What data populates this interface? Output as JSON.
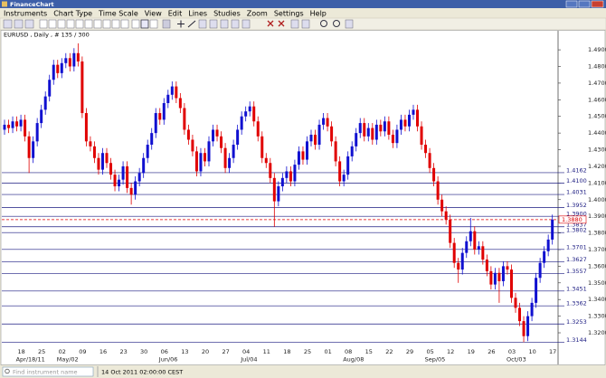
{
  "window": {
    "title": "FinanceChart"
  },
  "menu": [
    "Instruments",
    "Chart Type",
    "Time Scale",
    "View",
    "Edit",
    "Lines",
    "Studies",
    "Zoom",
    "Settings",
    "Help"
  ],
  "status": {
    "search_placeholder": "Find instrument name",
    "datetime": "14 Oct 2011 02:00:00 CEST"
  },
  "chart_data": {
    "type": "candlestick",
    "title": "EURUSD , Daily , # 135 / 300",
    "up_color": "#1010d0",
    "down_color": "#e00000",
    "level_color": "#1a1a80",
    "last_color": "#e00000",
    "ylim": [
      1.3124,
      1.4982
    ],
    "yticks": [
      {
        "value": 1.49,
        "label": "1.4900"
      },
      {
        "value": 1.48,
        "label": "1.4800"
      },
      {
        "value": 1.47,
        "label": "1.4700"
      },
      {
        "value": 1.46,
        "label": "1.4600"
      },
      {
        "value": 1.45,
        "label": "1.4500"
      },
      {
        "value": 1.44,
        "label": "1.4400"
      },
      {
        "value": 1.43,
        "label": "1.4300"
      },
      {
        "value": 1.42,
        "label": "1.4200"
      },
      {
        "value": 1.41,
        "label": "1.4100"
      },
      {
        "value": 1.4,
        "label": "1.4000"
      },
      {
        "value": 1.39,
        "label": "1.3900"
      },
      {
        "value": 1.38,
        "label": "1.3800"
      },
      {
        "value": 1.37,
        "label": "1.3700"
      },
      {
        "value": 1.36,
        "label": "1.3600"
      },
      {
        "value": 1.35,
        "label": "1.3500"
      },
      {
        "value": 1.34,
        "label": "1.3400"
      },
      {
        "value": 1.33,
        "label": "1.3300"
      },
      {
        "value": 1.32,
        "label": "1.3200"
      }
    ],
    "levels": [
      1.4162,
      {
        "value": 1.41,
        "label": "1.4100"
      },
      1.4031,
      1.3952,
      {
        "value": 1.39,
        "label": "1.3900"
      },
      1.3837,
      1.3802,
      1.3701,
      1.3627,
      1.3557,
      1.3451,
      1.3362,
      1.3253,
      1.3144
    ],
    "last_price": {
      "value": 1.388,
      "label": "1.3880"
    },
    "categories": [
      null,
      null,
      null,
      null,
      null,
      "18",
      null,
      null,
      null,
      null,
      "25",
      null,
      null,
      null,
      null,
      "02",
      null,
      null,
      null,
      null,
      "09",
      null,
      null,
      null,
      null,
      "16",
      null,
      null,
      null,
      null,
      "23",
      null,
      null,
      null,
      null,
      "30",
      null,
      null,
      null,
      null,
      "06",
      null,
      null,
      null,
      null,
      "13",
      null,
      null,
      null,
      null,
      "20",
      null,
      null,
      null,
      null,
      "27",
      null,
      null,
      null,
      null,
      "04",
      null,
      null,
      null,
      null,
      "11",
      null,
      null,
      null,
      null,
      "18",
      null,
      null,
      null,
      null,
      "25",
      null,
      null,
      null,
      null,
      "01",
      null,
      null,
      null,
      null,
      "08",
      null,
      null,
      null,
      null,
      "15",
      null,
      null,
      null,
      null,
      "22",
      null,
      null,
      null,
      null,
      "29",
      null,
      null,
      null,
      null,
      "05",
      null,
      null,
      null,
      null,
      "12",
      null,
      null,
      null,
      null,
      "19",
      null,
      null,
      null,
      null,
      "26",
      null,
      null,
      null,
      null,
      "03",
      null,
      null,
      null,
      null,
      "10",
      null,
      null,
      null,
      null,
      "17"
    ],
    "month_categories": [
      null,
      null,
      null,
      null,
      null,
      "Apr/18/11",
      null,
      null,
      null,
      null,
      null,
      null,
      null,
      null,
      null,
      "May/02",
      null,
      null,
      null,
      null,
      null,
      null,
      null,
      null,
      null,
      null,
      null,
      null,
      null,
      null,
      null,
      null,
      null,
      null,
      null,
      null,
      null,
      null,
      null,
      null,
      "Jun/06",
      null,
      null,
      null,
      null,
      null,
      null,
      null,
      null,
      null,
      null,
      null,
      null,
      null,
      null,
      null,
      null,
      null,
      null,
      null,
      "Jul/04",
      null,
      null,
      null,
      null,
      null,
      null,
      null,
      null,
      null,
      null,
      null,
      null,
      null,
      null,
      null,
      null,
      null,
      null,
      null,
      null,
      null,
      null,
      null,
      null,
      "Aug/08",
      null,
      null,
      null,
      null,
      null,
      null,
      null,
      null,
      null,
      null,
      null,
      null,
      null,
      null,
      null,
      null,
      null,
      null,
      null,
      "Sep/05",
      null,
      null,
      null,
      null,
      null,
      null,
      null,
      null,
      null,
      null,
      null,
      null,
      null,
      null,
      null,
      null,
      null,
      null,
      null,
      "Oct/03",
      null,
      null,
      null,
      null,
      null,
      null,
      null,
      null,
      null,
      null
    ],
    "ohlc": [
      [
        1.442,
        1.448,
        1.439,
        1.445
      ],
      [
        1.445,
        1.448,
        1.44,
        1.443
      ],
      [
        1.443,
        1.45,
        1.44,
        1.447
      ],
      [
        1.447,
        1.45,
        1.441,
        1.444
      ],
      [
        1.444,
        1.451,
        1.441,
        1.448
      ],
      [
        1.448,
        1.451,
        1.435,
        1.438
      ],
      [
        1.438,
        1.441,
        1.416,
        1.425
      ],
      [
        1.425,
        1.438,
        1.422,
        1.435
      ],
      [
        1.435,
        1.449,
        1.432,
        1.446
      ],
      [
        1.446,
        1.457,
        1.443,
        1.454
      ],
      [
        1.454,
        1.465,
        1.451,
        1.462
      ],
      [
        1.462,
        1.475,
        1.459,
        1.472
      ],
      [
        1.472,
        1.484,
        1.469,
        1.481
      ],
      [
        1.481,
        1.484,
        1.473,
        1.476
      ],
      [
        1.476,
        1.485,
        1.473,
        1.482
      ],
      [
        1.482,
        1.488,
        1.479,
        1.485
      ],
      [
        1.485,
        1.488,
        1.477,
        1.48
      ],
      [
        1.48,
        1.491,
        1.477,
        1.488
      ],
      [
        1.488,
        1.4939,
        1.48,
        1.483
      ],
      [
        1.483,
        1.486,
        1.449,
        1.452
      ],
      [
        1.452,
        1.455,
        1.432,
        1.435
      ],
      [
        1.435,
        1.438,
        1.429,
        1.432
      ],
      [
        1.432,
        1.435,
        1.422,
        1.425
      ],
      [
        1.425,
        1.428,
        1.415,
        1.418
      ],
      [
        1.418,
        1.431,
        1.415,
        1.428
      ],
      [
        1.428,
        1.431,
        1.419,
        1.422
      ],
      [
        1.422,
        1.425,
        1.412,
        1.415
      ],
      [
        1.415,
        1.418,
        1.405,
        1.408
      ],
      [
        1.408,
        1.415,
        1.405,
        1.412
      ],
      [
        1.412,
        1.423,
        1.409,
        1.42
      ],
      [
        1.42,
        1.423,
        1.404,
        1.407
      ],
      [
        1.407,
        1.41,
        1.397,
        1.403
      ],
      [
        1.403,
        1.414,
        1.4,
        1.411
      ],
      [
        1.411,
        1.419,
        1.408,
        1.416
      ],
      [
        1.416,
        1.428,
        1.413,
        1.425
      ],
      [
        1.425,
        1.436,
        1.422,
        1.433
      ],
      [
        1.433,
        1.443,
        1.43,
        1.44
      ],
      [
        1.44,
        1.455,
        1.437,
        1.452
      ],
      [
        1.452,
        1.455,
        1.445,
        1.448
      ],
      [
        1.448,
        1.461,
        1.445,
        1.458
      ],
      [
        1.458,
        1.466,
        1.455,
        1.463
      ],
      [
        1.463,
        1.471,
        1.46,
        1.468
      ],
      [
        1.468,
        1.471,
        1.458,
        1.461
      ],
      [
        1.461,
        1.464,
        1.452,
        1.455
      ],
      [
        1.455,
        1.458,
        1.439,
        1.442
      ],
      [
        1.442,
        1.445,
        1.433,
        1.436
      ],
      [
        1.436,
        1.439,
        1.426,
        1.429
      ],
      [
        1.429,
        1.432,
        1.414,
        1.417
      ],
      [
        1.417,
        1.431,
        1.414,
        1.428
      ],
      [
        1.428,
        1.431,
        1.42,
        1.423
      ],
      [
        1.423,
        1.438,
        1.42,
        1.435
      ],
      [
        1.435,
        1.445,
        1.432,
        1.442
      ],
      [
        1.442,
        1.445,
        1.435,
        1.438
      ],
      [
        1.438,
        1.441,
        1.428,
        1.431
      ],
      [
        1.431,
        1.434,
        1.416,
        1.419
      ],
      [
        1.419,
        1.428,
        1.416,
        1.425
      ],
      [
        1.425,
        1.436,
        1.422,
        1.433
      ],
      [
        1.433,
        1.445,
        1.43,
        1.442
      ],
      [
        1.442,
        1.453,
        1.439,
        1.45
      ],
      [
        1.45,
        1.456,
        1.447,
        1.453
      ],
      [
        1.453,
        1.459,
        1.45,
        1.456
      ],
      [
        1.456,
        1.459,
        1.444,
        1.447
      ],
      [
        1.447,
        1.45,
        1.435,
        1.438
      ],
      [
        1.438,
        1.441,
        1.422,
        1.425
      ],
      [
        1.425,
        1.428,
        1.419,
        1.422
      ],
      [
        1.422,
        1.425,
        1.41,
        1.413
      ],
      [
        1.413,
        1.416,
        1.3837,
        1.399
      ],
      [
        1.399,
        1.411,
        1.396,
        1.408
      ],
      [
        1.408,
        1.416,
        1.405,
        1.413
      ],
      [
        1.413,
        1.42,
        1.41,
        1.417
      ],
      [
        1.417,
        1.42,
        1.408,
        1.411
      ],
      [
        1.411,
        1.424,
        1.408,
        1.421
      ],
      [
        1.421,
        1.432,
        1.418,
        1.429
      ],
      [
        1.429,
        1.432,
        1.421,
        1.424
      ],
      [
        1.424,
        1.438,
        1.421,
        1.435
      ],
      [
        1.435,
        1.442,
        1.432,
        1.439
      ],
      [
        1.439,
        1.442,
        1.43,
        1.433
      ],
      [
        1.433,
        1.448,
        1.43,
        1.445
      ],
      [
        1.445,
        1.452,
        1.442,
        1.449
      ],
      [
        1.449,
        1.452,
        1.441,
        1.444
      ],
      [
        1.444,
        1.447,
        1.432,
        1.435
      ],
      [
        1.435,
        1.438,
        1.42,
        1.423
      ],
      [
        1.423,
        1.426,
        1.408,
        1.411
      ],
      [
        1.411,
        1.418,
        1.408,
        1.415
      ],
      [
        1.415,
        1.429,
        1.412,
        1.426
      ],
      [
        1.426,
        1.435,
        1.423,
        1.432
      ],
      [
        1.432,
        1.443,
        1.429,
        1.44
      ],
      [
        1.44,
        1.449,
        1.437,
        1.446
      ],
      [
        1.446,
        1.449,
        1.435,
        1.438
      ],
      [
        1.438,
        1.446,
        1.435,
        1.443
      ],
      [
        1.443,
        1.446,
        1.433,
        1.436
      ],
      [
        1.436,
        1.448,
        1.433,
        1.445
      ],
      [
        1.445,
        1.448,
        1.438,
        1.441
      ],
      [
        1.441,
        1.45,
        1.438,
        1.447
      ],
      [
        1.447,
        1.45,
        1.436,
        1.439
      ],
      [
        1.439,
        1.442,
        1.431,
        1.434
      ],
      [
        1.434,
        1.445,
        1.431,
        1.442
      ],
      [
        1.442,
        1.451,
        1.439,
        1.448
      ],
      [
        1.448,
        1.451,
        1.441,
        1.444
      ],
      [
        1.444,
        1.454,
        1.441,
        1.451
      ],
      [
        1.451,
        1.457,
        1.448,
        1.454
      ],
      [
        1.454,
        1.457,
        1.441,
        1.444
      ],
      [
        1.444,
        1.447,
        1.43,
        1.433
      ],
      [
        1.433,
        1.436,
        1.425,
        1.428
      ],
      [
        1.428,
        1.431,
        1.416,
        1.419
      ],
      [
        1.419,
        1.422,
        1.408,
        1.411
      ],
      [
        1.411,
        1.414,
        1.397,
        1.4
      ],
      [
        1.4,
        1.403,
        1.39,
        1.393
      ],
      [
        1.393,
        1.396,
        1.385,
        1.388
      ],
      [
        1.388,
        1.391,
        1.371,
        1.374
      ],
      [
        1.374,
        1.377,
        1.359,
        1.362
      ],
      [
        1.362,
        1.365,
        1.35,
        1.358
      ],
      [
        1.358,
        1.371,
        1.355,
        1.368
      ],
      [
        1.368,
        1.378,
        1.365,
        1.375
      ],
      [
        1.375,
        1.389,
        1.372,
        1.381
      ],
      [
        1.381,
        1.384,
        1.367,
        1.37
      ],
      [
        1.37,
        1.375,
        1.367,
        1.372
      ],
      [
        1.372,
        1.375,
        1.361,
        1.364
      ],
      [
        1.364,
        1.367,
        1.354,
        1.357
      ],
      [
        1.357,
        1.36,
        1.346,
        1.349
      ],
      [
        1.349,
        1.359,
        1.346,
        1.356
      ],
      [
        1.356,
        1.359,
        1.338,
        1.351
      ],
      [
        1.351,
        1.363,
        1.348,
        1.36
      ],
      [
        1.36,
        1.363,
        1.355,
        1.358
      ],
      [
        1.358,
        1.361,
        1.338,
        1.341
      ],
      [
        1.341,
        1.344,
        1.332,
        1.335
      ],
      [
        1.335,
        1.338,
        1.324,
        1.327
      ],
      [
        1.327,
        1.33,
        1.3144,
        1.318
      ],
      [
        1.318,
        1.333,
        1.315,
        1.33
      ],
      [
        1.33,
        1.341,
        1.327,
        1.338
      ],
      [
        1.338,
        1.356,
        1.335,
        1.353
      ],
      [
        1.353,
        1.365,
        1.35,
        1.362
      ],
      [
        1.362,
        1.372,
        1.359,
        1.369
      ],
      [
        1.369,
        1.379,
        1.366,
        1.376
      ],
      [
        1.376,
        1.391,
        1.373,
        1.388
      ],
      null
    ]
  }
}
